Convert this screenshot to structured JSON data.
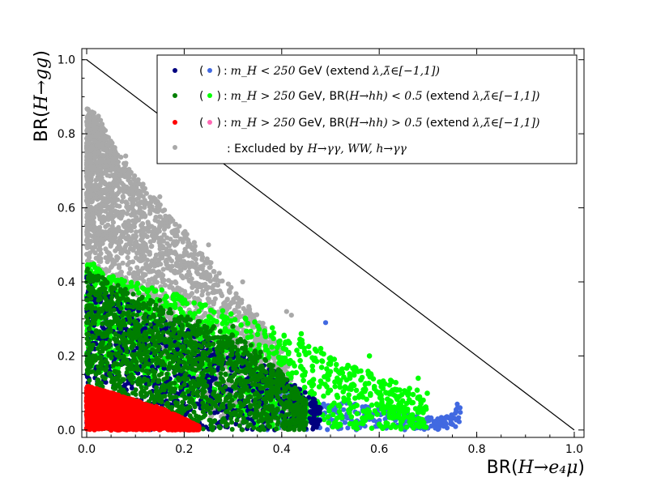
{
  "chart_data": {
    "type": "scatter",
    "xlabel": {
      "prefix": "BR(",
      "math": "H→e₄μ",
      "suffix": ")"
    },
    "ylabel": {
      "prefix": "BR(",
      "math": "H→gg",
      "suffix": ")"
    },
    "xlim": [
      -0.01,
      1.02
    ],
    "ylim": [
      -0.02,
      1.03
    ],
    "x_ticks": [
      "0.0",
      "0.2",
      "0.4",
      "0.6",
      "0.8",
      "1.0"
    ],
    "y_ticks": [
      "0.0",
      "0.2",
      "0.4",
      "0.6",
      "0.8",
      "1.0"
    ],
    "grid": false,
    "legend_position": "top-right",
    "reference_line": {
      "x": [
        0,
        1
      ],
      "y": [
        1,
        0
      ],
      "color": "#000000"
    },
    "legend": [
      {
        "open": "(",
        "close": ")",
        "colon": ":",
        "math": "m_H < 250",
        "text": "GeV (extend",
        "extend": "λ,λ̄∈[−1,1])",
        "marker_color": "#00007f",
        "paren_marker_color": "#4169e1"
      },
      {
        "open": "(",
        "close": ")",
        "colon": ":",
        "math": "m_H > 250",
        "text": "GeV, BR(",
        "br": "H→hh) < 0.5",
        "text2": "(extend",
        "extend": "λ,λ̄∈[−1,1])",
        "marker_color": "#007f00",
        "paren_marker_color": "#00ff00"
      },
      {
        "open": "(",
        "close": ")",
        "colon": ":",
        "math": "m_H > 250",
        "text": "GeV, BR(",
        "br": "H→hh) > 0.5",
        "text2": "(extend",
        "extend": "λ,λ̄∈[−1,1])",
        "marker_color": "#ff0000",
        "paren_marker_color": "#ff69b4"
      },
      {
        "text": ": Excluded by",
        "math": "H→γγ, WW, h→γγ",
        "marker_color": "#a9a9a9"
      }
    ],
    "series": [
      {
        "key": "excluded",
        "color": "#a9a9a9",
        "xmax": 0.42,
        "ymax": 0.87,
        "envelope": [
          [
            0.0,
            0.87
          ],
          [
            0.02,
            0.86
          ],
          [
            0.05,
            0.78
          ],
          [
            0.1,
            0.69
          ],
          [
            0.15,
            0.61
          ],
          [
            0.2,
            0.54
          ],
          [
            0.25,
            0.46
          ],
          [
            0.3,
            0.38
          ],
          [
            0.35,
            0.31
          ],
          [
            0.4,
            0.22
          ],
          [
            0.42,
            0.15
          ]
        ],
        "points": [
          [
            0.001,
            0.867
          ],
          [
            0.003,
            0.84
          ],
          [
            0.03,
            0.8
          ],
          [
            0.08,
            0.74
          ],
          [
            0.15,
            0.63
          ],
          [
            0.25,
            0.5
          ],
          [
            0.32,
            0.4
          ],
          [
            0.41,
            0.32
          ],
          [
            0.42,
            0.31
          ]
        ]
      },
      {
        "key": "light-blue",
        "color": "#4169e1",
        "xmax": 0.77,
        "ymax": 0.29,
        "envelope": [
          [
            0.35,
            0.12
          ],
          [
            0.45,
            0.1
          ],
          [
            0.55,
            0.07
          ],
          [
            0.65,
            0.05
          ],
          [
            0.72,
            0.03
          ],
          [
            0.77,
            0.07
          ]
        ],
        "points": [
          [
            0.76,
            0.07
          ],
          [
            0.72,
            0.03
          ],
          [
            0.66,
            0.03
          ],
          [
            0.62,
            0.07
          ],
          [
            0.57,
            0.04
          ],
          [
            0.53,
            0.02
          ],
          [
            0.49,
            0.29
          ],
          [
            0.45,
            0.03
          ]
        ]
      },
      {
        "key": "light-green",
        "color": "#00ff00",
        "xmax": 0.7,
        "ymax": 0.46,
        "envelope": [
          [
            0.0,
            0.46
          ],
          [
            0.05,
            0.42
          ],
          [
            0.1,
            0.4
          ],
          [
            0.15,
            0.38
          ],
          [
            0.2,
            0.36
          ],
          [
            0.25,
            0.34
          ],
          [
            0.3,
            0.32
          ],
          [
            0.35,
            0.29
          ],
          [
            0.4,
            0.27
          ],
          [
            0.45,
            0.24
          ],
          [
            0.5,
            0.2
          ],
          [
            0.55,
            0.17
          ],
          [
            0.6,
            0.15
          ],
          [
            0.65,
            0.12
          ],
          [
            0.7,
            0.1
          ]
        ],
        "points": [
          [
            0.68,
            0.14
          ],
          [
            0.66,
            0.1
          ],
          [
            0.62,
            0.08
          ],
          [
            0.58,
            0.2
          ],
          [
            0.54,
            0.14
          ],
          [
            0.48,
            0.22
          ],
          [
            0.44,
            0.26
          ]
        ]
      },
      {
        "key": "dark-blue",
        "color": "#00007f",
        "xmax": 0.48,
        "ymax": 0.42,
        "envelope": [
          [
            0.0,
            0.42
          ],
          [
            0.1,
            0.33
          ],
          [
            0.2,
            0.28
          ],
          [
            0.3,
            0.22
          ],
          [
            0.4,
            0.15
          ],
          [
            0.48,
            0.07
          ]
        ],
        "points": [
          [
            0.46,
            0.05
          ],
          [
            0.42,
            0.03
          ],
          [
            0.38,
            0.04
          ],
          [
            0.24,
            0.16
          ],
          [
            0.11,
            0.21
          ]
        ]
      },
      {
        "key": "dark-green",
        "color": "#007f00",
        "xmax": 0.45,
        "ymax": 0.44,
        "envelope": [
          [
            0.0,
            0.44
          ],
          [
            0.05,
            0.4
          ],
          [
            0.1,
            0.37
          ],
          [
            0.15,
            0.34
          ],
          [
            0.2,
            0.31
          ],
          [
            0.25,
            0.29
          ],
          [
            0.3,
            0.26
          ],
          [
            0.35,
            0.22
          ],
          [
            0.4,
            0.16
          ],
          [
            0.45,
            0.08
          ]
        ],
        "points": [
          [
            0.45,
            0.02
          ],
          [
            0.42,
            0.11
          ],
          [
            0.3,
            0.28
          ],
          [
            0.15,
            0.35
          ]
        ]
      },
      {
        "key": "red",
        "color": "#ff0000",
        "xmax": 0.23,
        "ymax": 0.12,
        "envelope": [
          [
            0.0,
            0.12
          ],
          [
            0.05,
            0.1
          ],
          [
            0.1,
            0.08
          ],
          [
            0.15,
            0.06
          ],
          [
            0.2,
            0.03
          ],
          [
            0.23,
            0.01
          ]
        ],
        "points": []
      }
    ]
  }
}
